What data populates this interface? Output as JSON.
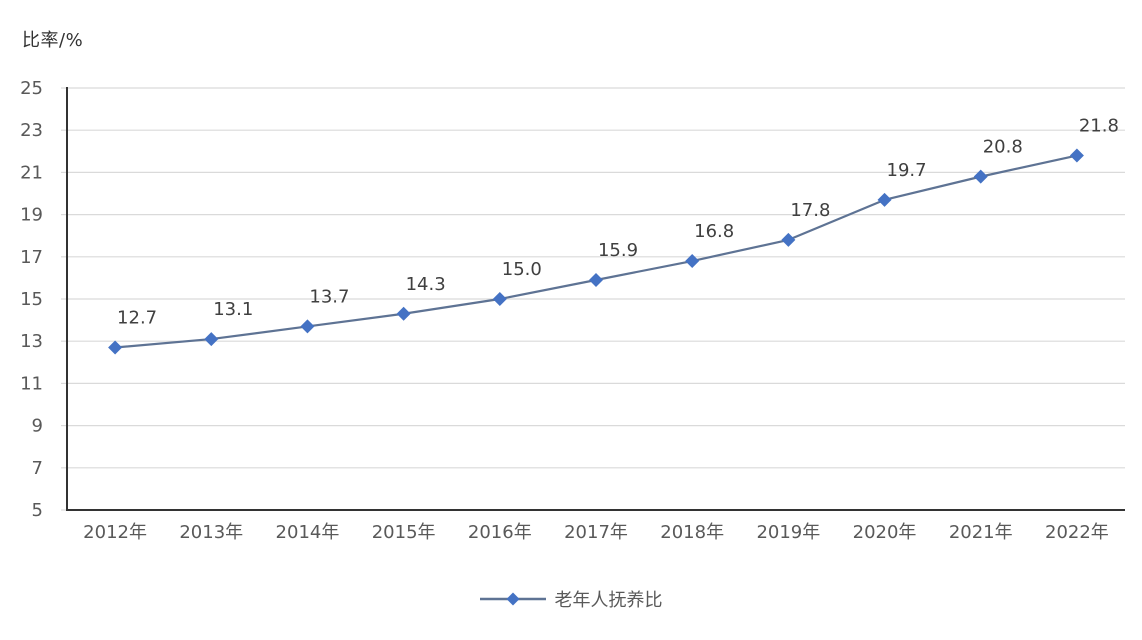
{
  "chart_data": {
    "type": "line",
    "title": "",
    "ylabel": "比率/%",
    "xlabel": "",
    "categories": [
      "2012年",
      "2013年",
      "2014年",
      "2015年",
      "2016年",
      "2017年",
      "2018年",
      "2019年",
      "2020年",
      "2021年",
      "2022年"
    ],
    "series": [
      {
        "name": "老年人抚养比",
        "values": [
          12.7,
          13.1,
          13.7,
          14.3,
          15.0,
          15.9,
          16.8,
          17.8,
          19.7,
          20.8,
          21.8
        ],
        "labels": [
          "12.7",
          "13.1",
          "13.7",
          "14.3",
          "15.0",
          "15.9",
          "16.8",
          "17.8",
          "19.7",
          "20.8",
          "21.8"
        ]
      }
    ],
    "ylim": [
      5,
      25
    ],
    "ytick_step": 2,
    "yticks": [
      5,
      7,
      9,
      11,
      13,
      15,
      17,
      19,
      21,
      23,
      25
    ],
    "grid": true,
    "legend_position": "bottom",
    "marker_shape": "diamond",
    "colors": {
      "line": "#5e7394",
      "marker": "#4472c4",
      "grid": "#dadada",
      "axis": "#333333",
      "tick_label": "#595959",
      "data_label": "#404040",
      "background": "#ffffff"
    }
  }
}
